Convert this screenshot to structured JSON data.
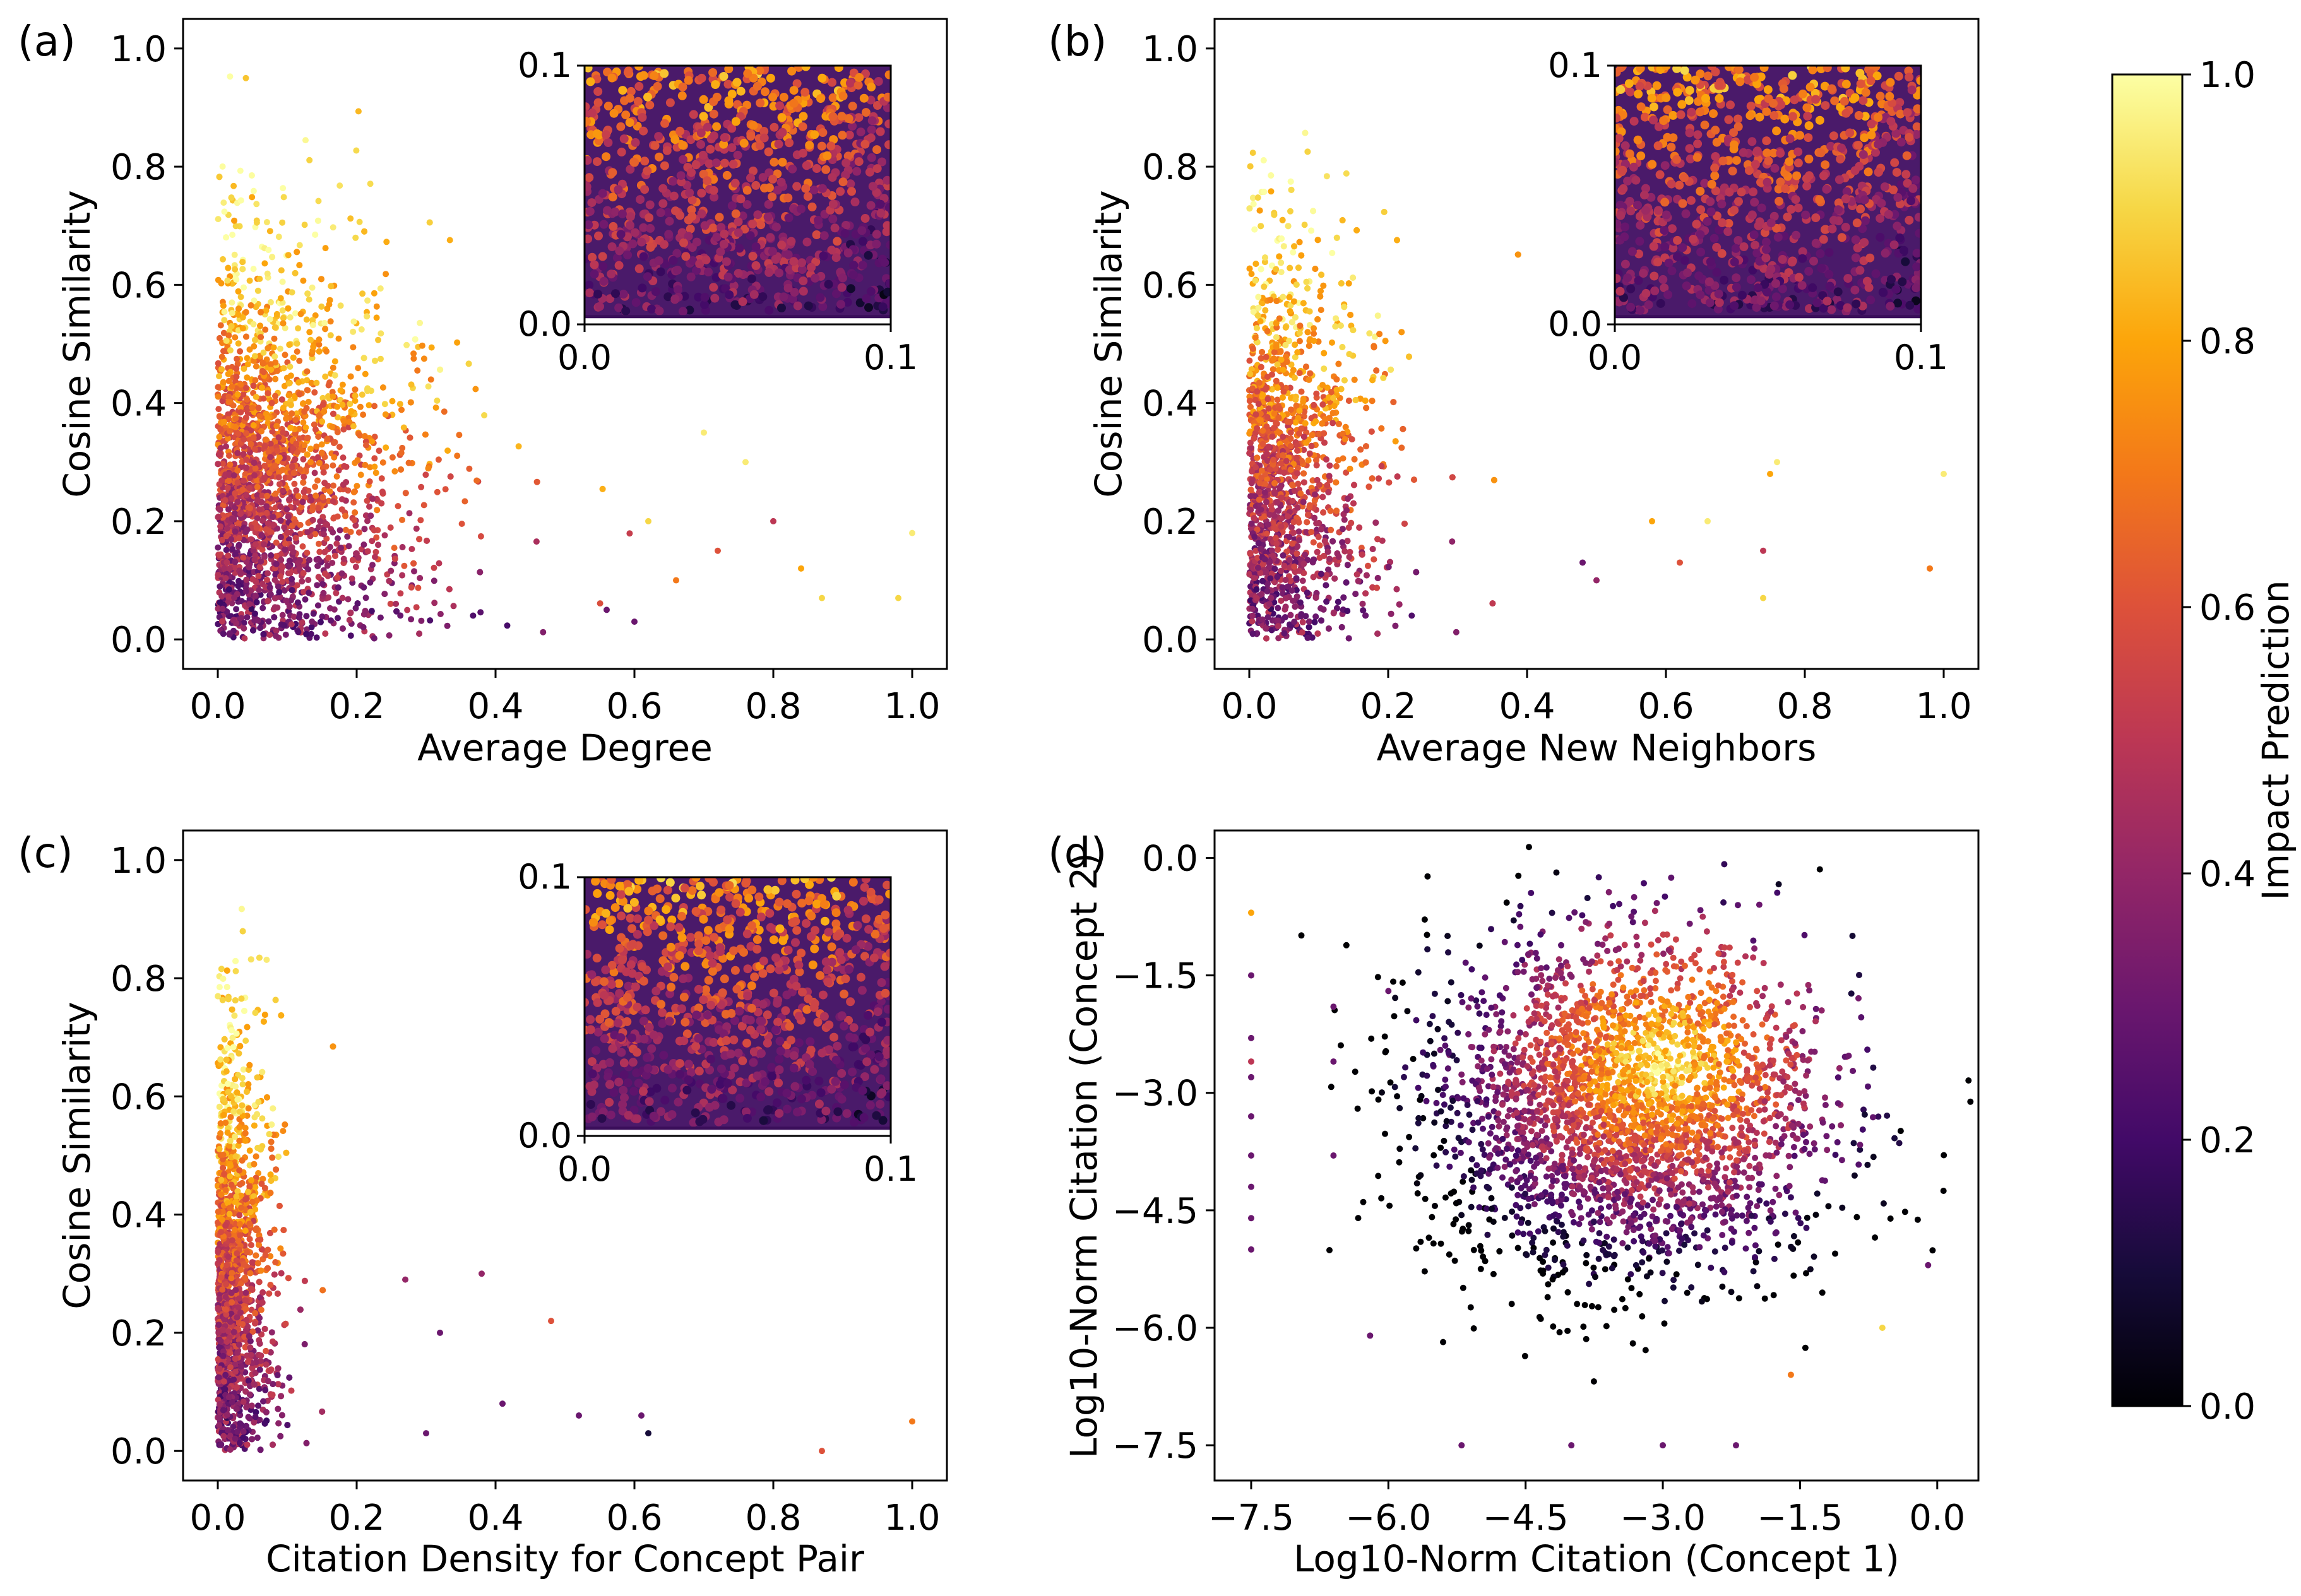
{
  "chart_data": [
    {
      "type": "scatter",
      "panel_label": "(a)",
      "xlabel": "Average Degree",
      "ylabel": "Cosine Similarity",
      "xlim": [
        -0.05,
        1.05
      ],
      "ylim": [
        -0.05,
        1.05
      ],
      "xticks": [
        "0.0",
        "0.2",
        "0.4",
        "0.6",
        "0.8",
        "1.0"
      ],
      "yticks": [
        "0.0",
        "0.2",
        "0.4",
        "0.6",
        "0.8",
        "1.0"
      ],
      "x_tick_values": [
        0,
        0.2,
        0.4,
        0.6,
        0.8,
        1.0
      ],
      "y_tick_values": [
        0,
        0.2,
        0.4,
        0.6,
        0.8,
        1.0
      ],
      "color_by": "Impact Prediction",
      "cloud": {
        "x_center": 0.15,
        "x_spread": 0.11,
        "y_center": 0.3,
        "y_spread": 0.22,
        "n_points": 2600
      },
      "outliers": [
        {
          "x": 0.62,
          "y": 0.2,
          "c": 0.9
        },
        {
          "x": 0.66,
          "y": 0.1,
          "c": 0.7
        },
        {
          "x": 0.72,
          "y": 0.15,
          "c": 0.6
        },
        {
          "x": 0.76,
          "y": 0.3,
          "c": 0.95
        },
        {
          "x": 0.8,
          "y": 0.2,
          "c": 0.5
        },
        {
          "x": 0.84,
          "y": 0.12,
          "c": 0.8
        },
        {
          "x": 0.87,
          "y": 0.07,
          "c": 0.9
        },
        {
          "x": 0.98,
          "y": 0.07,
          "c": 0.9
        },
        {
          "x": 1.0,
          "y": 0.18,
          "c": 0.95
        },
        {
          "x": 0.7,
          "y": 0.35,
          "c": 0.95
        },
        {
          "x": 0.6,
          "y": 0.03,
          "c": 0.3
        },
        {
          "x": 0.56,
          "y": 0.05,
          "c": 0.3
        }
      ],
      "inset": {
        "xlim": [
          0,
          0.1
        ],
        "ylim": [
          0,
          0.1
        ],
        "xticks": [
          "0.0",
          "0.1"
        ],
        "yticks": [
          "0.0",
          "0.1"
        ]
      }
    },
    {
      "type": "scatter",
      "panel_label": "(b)",
      "xlabel": "Average New Neighbors",
      "ylabel": "Cosine Similarity",
      "xlim": [
        -0.05,
        1.05
      ],
      "ylim": [
        -0.05,
        1.05
      ],
      "xticks": [
        "0.0",
        "0.2",
        "0.4",
        "0.6",
        "0.8",
        "1.0"
      ],
      "yticks": [
        "0.0",
        "0.2",
        "0.4",
        "0.6",
        "0.8",
        "1.0"
      ],
      "x_tick_values": [
        0,
        0.2,
        0.4,
        0.6,
        0.8,
        1.0
      ],
      "y_tick_values": [
        0,
        0.2,
        0.4,
        0.6,
        0.8,
        1.0
      ],
      "color_by": "Impact Prediction",
      "cloud": {
        "x_center": 0.07,
        "x_spread": 0.07,
        "y_center": 0.32,
        "y_spread": 0.22,
        "n_points": 2600
      },
      "outliers": [
        {
          "x": 0.5,
          "y": 0.1,
          "c": 0.4
        },
        {
          "x": 0.58,
          "y": 0.2,
          "c": 0.8
        },
        {
          "x": 0.62,
          "y": 0.13,
          "c": 0.6
        },
        {
          "x": 0.66,
          "y": 0.2,
          "c": 0.95
        },
        {
          "x": 0.74,
          "y": 0.15,
          "c": 0.5
        },
        {
          "x": 0.74,
          "y": 0.07,
          "c": 0.9
        },
        {
          "x": 0.75,
          "y": 0.28,
          "c": 0.8
        },
        {
          "x": 0.76,
          "y": 0.3,
          "c": 0.95
        },
        {
          "x": 0.98,
          "y": 0.12,
          "c": 0.7
        },
        {
          "x": 1.0,
          "y": 0.28,
          "c": 0.95
        },
        {
          "x": 0.48,
          "y": 0.13,
          "c": 0.3
        }
      ],
      "inset": {
        "xlim": [
          0,
          0.1
        ],
        "ylim": [
          0,
          0.1
        ],
        "xticks": [
          "0.0",
          "0.1"
        ],
        "yticks": [
          "0.0",
          "0.1"
        ]
      }
    },
    {
      "type": "scatter",
      "panel_label": "(c)",
      "xlabel": "Citation Density for Concept Pair",
      "ylabel": "Cosine Similarity",
      "xlim": [
        -0.05,
        1.05
      ],
      "ylim": [
        -0.05,
        1.05
      ],
      "xticks": [
        "0.0",
        "0.2",
        "0.4",
        "0.6",
        "0.8",
        "1.0"
      ],
      "yticks": [
        "0.0",
        "0.2",
        "0.4",
        "0.6",
        "0.8",
        "1.0"
      ],
      "x_tick_values": [
        0,
        0.2,
        0.4,
        0.6,
        0.8,
        1.0
      ],
      "y_tick_values": [
        0,
        0.2,
        0.4,
        0.6,
        0.8,
        1.0
      ],
      "color_by": "Impact Prediction",
      "cloud": {
        "x_center": 0.03,
        "x_spread": 0.03,
        "y_center": 0.32,
        "y_spread": 0.24,
        "n_points": 2600
      },
      "outliers": [
        {
          "x": 0.27,
          "y": 0.29,
          "c": 0.4
        },
        {
          "x": 0.32,
          "y": 0.2,
          "c": 0.3
        },
        {
          "x": 0.38,
          "y": 0.3,
          "c": 0.4
        },
        {
          "x": 0.41,
          "y": 0.08,
          "c": 0.3
        },
        {
          "x": 0.48,
          "y": 0.22,
          "c": 0.6
        },
        {
          "x": 0.52,
          "y": 0.06,
          "c": 0.3
        },
        {
          "x": 0.61,
          "y": 0.06,
          "c": 0.3
        },
        {
          "x": 0.62,
          "y": 0.03,
          "c": 0.1
        },
        {
          "x": 0.87,
          "y": 0.0,
          "c": 0.6
        },
        {
          "x": 1.0,
          "y": 0.05,
          "c": 0.7
        },
        {
          "x": 0.3,
          "y": 0.03,
          "c": 0.3
        }
      ],
      "inset": {
        "xlim": [
          0,
          0.1
        ],
        "ylim": [
          0,
          0.1
        ],
        "xticks": [
          "0.0",
          "0.1"
        ],
        "yticks": [
          "0.0",
          "0.1"
        ]
      }
    },
    {
      "type": "scatter",
      "panel_label": "(d)",
      "xlabel": "Log10-Norm Citation (Concept 1)",
      "ylabel": "Log10-Norm Citation (Concept 2)",
      "xlim": [
        -7.9,
        0.45
      ],
      "ylim": [
        -7.95,
        0.35
      ],
      "xticks": [
        "−7.5",
        "−6.0",
        "−4.5",
        "−3.0",
        "−1.5",
        "0.0"
      ],
      "yticks": [
        "−7.5",
        "−6.0",
        "−4.5",
        "−3.0",
        "−1.5",
        "0.0"
      ],
      "x_tick_values": [
        -7.5,
        -6.0,
        -4.5,
        -3.0,
        -1.5,
        0.0
      ],
      "y_tick_values": [
        -7.5,
        -6.0,
        -4.5,
        -3.0,
        -1.5,
        0.0
      ],
      "color_by": "Impact Prediction",
      "cloud": {
        "x_center": -3.4,
        "x_spread": 1.05,
        "y_center": -3.2,
        "y_spread": 1.05,
        "n_points": 3000
      },
      "outliers": [
        {
          "x": -7.5,
          "y": -0.7,
          "c": 0.8
        },
        {
          "x": -7.5,
          "y": -1.5,
          "c": 0.3
        },
        {
          "x": -7.5,
          "y": -2.3,
          "c": 0.3
        },
        {
          "x": -7.5,
          "y": -2.6,
          "c": 0.5
        },
        {
          "x": -7.5,
          "y": -2.8,
          "c": 0.3
        },
        {
          "x": -7.5,
          "y": -3.3,
          "c": 0.3
        },
        {
          "x": -7.5,
          "y": -3.8,
          "c": 0.3
        },
        {
          "x": -7.5,
          "y": -4.2,
          "c": 0.3
        },
        {
          "x": -7.5,
          "y": -4.6,
          "c": 0.3
        },
        {
          "x": -7.5,
          "y": -5.0,
          "c": 0.3
        },
        {
          "x": -6.6,
          "y": -1.9,
          "c": 0.3
        },
        {
          "x": -6.6,
          "y": -2.6,
          "c": 0.3
        },
        {
          "x": -6.6,
          "y": -3.8,
          "c": 0.3
        },
        {
          "x": -6.0,
          "y": -1.7,
          "c": 0.3
        },
        {
          "x": -6.2,
          "y": -6.1,
          "c": 0.3
        },
        {
          "x": -5.2,
          "y": -7.5,
          "c": 0.3
        },
        {
          "x": -4.0,
          "y": -7.5,
          "c": 0.3
        },
        {
          "x": -3.0,
          "y": -7.5,
          "c": 0.3
        },
        {
          "x": -2.2,
          "y": -7.5,
          "c": 0.3
        },
        {
          "x": -0.1,
          "y": -5.2,
          "c": 0.3
        },
        {
          "x": -0.6,
          "y": -6.0,
          "c": 0.9
        },
        {
          "x": -1.6,
          "y": -6.6,
          "c": 0.7
        }
      ]
    }
  ],
  "colorbar": {
    "label": "Impact Prediction",
    "ticks": [
      "0.0",
      "0.2",
      "0.4",
      "0.6",
      "0.8",
      "1.0"
    ],
    "tick_values": [
      0,
      0.2,
      0.4,
      0.6,
      0.8,
      1.0
    ],
    "colormap": "inferno"
  }
}
